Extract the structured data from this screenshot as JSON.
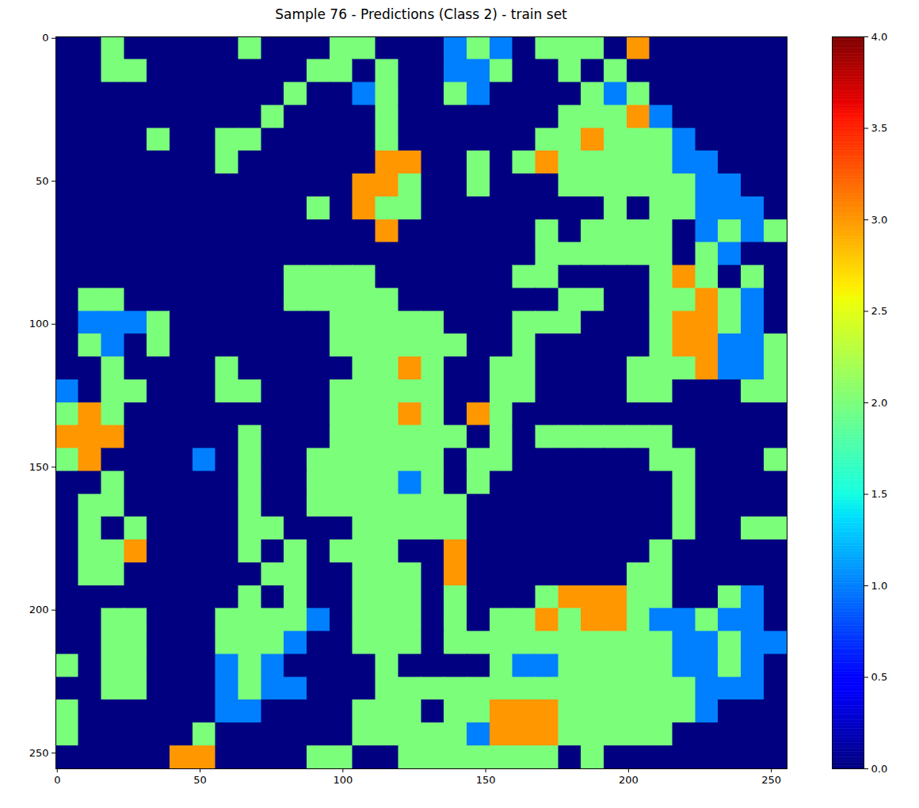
{
  "chart_data": {
    "type": "heatmap",
    "title": "Sample 76 - Predictions (Class 2) - train set",
    "xlim": [
      -0.5,
      255.5
    ],
    "ylim": [
      255.5,
      -0.5
    ],
    "xticks": [
      0,
      50,
      100,
      150,
      200,
      250
    ],
    "yticks": [
      0,
      50,
      100,
      150,
      200,
      250
    ],
    "grid": false,
    "cells": [
      [
        0,
        0,
        2,
        0,
        0,
        0,
        0,
        0,
        2,
        0,
        0,
        0,
        2,
        2,
        0,
        0,
        0,
        1,
        2,
        1,
        0,
        2,
        2,
        2,
        0,
        3,
        0,
        0,
        0,
        0,
        0,
        0
      ],
      [
        0,
        0,
        2,
        2,
        0,
        0,
        0,
        0,
        0,
        0,
        0,
        2,
        2,
        0,
        2,
        0,
        0,
        1,
        1,
        2,
        0,
        0,
        2,
        0,
        2,
        0,
        0,
        0,
        0,
        0,
        0,
        0
      ],
      [
        0,
        0,
        0,
        0,
        0,
        0,
        0,
        0,
        0,
        0,
        2,
        0,
        0,
        1,
        2,
        0,
        0,
        2,
        1,
        0,
        0,
        0,
        0,
        2,
        1,
        2,
        0,
        0,
        0,
        0,
        0,
        0
      ],
      [
        0,
        0,
        0,
        0,
        0,
        0,
        0,
        0,
        0,
        2,
        0,
        0,
        0,
        0,
        2,
        0,
        0,
        0,
        0,
        0,
        0,
        0,
        2,
        2,
        2,
        3,
        1,
        0,
        0,
        0,
        0,
        0
      ],
      [
        0,
        0,
        0,
        0,
        2,
        0,
        0,
        2,
        2,
        0,
        0,
        0,
        0,
        0,
        2,
        0,
        0,
        0,
        0,
        0,
        0,
        2,
        2,
        3,
        2,
        2,
        2,
        1,
        0,
        0,
        0,
        0
      ],
      [
        0,
        0,
        0,
        0,
        0,
        0,
        0,
        2,
        0,
        0,
        0,
        0,
        0,
        0,
        3,
        3,
        0,
        0,
        2,
        0,
        2,
        3,
        2,
        2,
        2,
        2,
        2,
        1,
        1,
        0,
        0,
        0
      ],
      [
        0,
        0,
        0,
        0,
        0,
        0,
        0,
        0,
        0,
        0,
        0,
        0,
        0,
        3,
        3,
        2,
        0,
        0,
        2,
        0,
        0,
        0,
        2,
        2,
        2,
        2,
        2,
        2,
        1,
        1,
        0,
        0
      ],
      [
        0,
        0,
        0,
        0,
        0,
        0,
        0,
        0,
        0,
        0,
        0,
        2,
        0,
        3,
        2,
        2,
        0,
        0,
        0,
        0,
        0,
        0,
        0,
        0,
        2,
        0,
        2,
        2,
        1,
        1,
        1,
        0
      ],
      [
        0,
        0,
        0,
        0,
        0,
        0,
        0,
        0,
        0,
        0,
        0,
        0,
        0,
        0,
        3,
        0,
        0,
        0,
        0,
        0,
        0,
        2,
        0,
        2,
        2,
        2,
        2,
        0,
        1,
        2,
        1,
        2
      ],
      [
        0,
        0,
        0,
        0,
        0,
        0,
        0,
        0,
        0,
        0,
        0,
        0,
        0,
        0,
        0,
        0,
        0,
        0,
        0,
        0,
        0,
        2,
        2,
        2,
        2,
        2,
        2,
        0,
        2,
        1,
        0,
        0
      ],
      [
        0,
        0,
        0,
        0,
        0,
        0,
        0,
        0,
        0,
        0,
        2,
        2,
        2,
        2,
        0,
        0,
        0,
        0,
        0,
        0,
        2,
        2,
        0,
        0,
        0,
        0,
        2,
        3,
        2,
        0,
        2,
        0
      ],
      [
        0,
        2,
        2,
        0,
        0,
        0,
        0,
        0,
        0,
        0,
        2,
        2,
        2,
        2,
        2,
        0,
        0,
        0,
        0,
        0,
        0,
        0,
        2,
        2,
        0,
        0,
        2,
        2,
        3,
        2,
        1,
        0
      ],
      [
        0,
        1,
        1,
        1,
        2,
        0,
        0,
        0,
        0,
        0,
        0,
        0,
        2,
        2,
        2,
        2,
        2,
        0,
        0,
        0,
        2,
        2,
        2,
        0,
        0,
        0,
        2,
        3,
        3,
        2,
        1,
        0
      ],
      [
        0,
        2,
        1,
        0,
        2,
        0,
        0,
        0,
        0,
        0,
        0,
        0,
        2,
        2,
        2,
        2,
        2,
        2,
        0,
        0,
        2,
        0,
        0,
        0,
        0,
        0,
        2,
        3,
        3,
        1,
        1,
        2
      ],
      [
        0,
        0,
        2,
        0,
        0,
        0,
        0,
        2,
        0,
        0,
        0,
        0,
        0,
        2,
        2,
        3,
        2,
        0,
        0,
        2,
        2,
        0,
        0,
        0,
        0,
        2,
        2,
        2,
        3,
        1,
        1,
        2
      ],
      [
        1,
        0,
        2,
        2,
        0,
        0,
        0,
        2,
        2,
        0,
        0,
        0,
        2,
        2,
        2,
        2,
        2,
        0,
        0,
        2,
        2,
        0,
        0,
        0,
        0,
        2,
        2,
        0,
        0,
        0,
        2,
        2
      ],
      [
        2,
        3,
        2,
        0,
        0,
        0,
        0,
        0,
        0,
        0,
        0,
        0,
        2,
        2,
        2,
        3,
        2,
        0,
        3,
        2,
        0,
        0,
        0,
        0,
        0,
        0,
        0,
        0,
        0,
        0,
        0,
        0
      ],
      [
        3,
        3,
        3,
        0,
        0,
        0,
        0,
        0,
        2,
        0,
        0,
        0,
        2,
        2,
        2,
        2,
        2,
        2,
        0,
        2,
        0,
        2,
        2,
        2,
        2,
        2,
        2,
        0,
        0,
        0,
        0,
        0
      ],
      [
        2,
        3,
        0,
        0,
        0,
        0,
        1,
        0,
        2,
        0,
        0,
        2,
        2,
        2,
        2,
        2,
        2,
        0,
        2,
        2,
        0,
        0,
        0,
        0,
        0,
        0,
        2,
        2,
        0,
        0,
        0,
        2
      ],
      [
        0,
        0,
        2,
        0,
        0,
        0,
        0,
        0,
        2,
        0,
        0,
        2,
        2,
        2,
        2,
        1,
        2,
        0,
        2,
        0,
        0,
        0,
        0,
        0,
        0,
        0,
        0,
        2,
        0,
        0,
        0,
        0
      ],
      [
        0,
        2,
        2,
        0,
        0,
        0,
        0,
        0,
        2,
        0,
        0,
        2,
        2,
        2,
        2,
        2,
        2,
        2,
        0,
        0,
        0,
        0,
        0,
        0,
        0,
        0,
        0,
        2,
        0,
        0,
        0,
        0
      ],
      [
        0,
        2,
        0,
        2,
        0,
        0,
        0,
        0,
        2,
        2,
        0,
        0,
        0,
        2,
        2,
        2,
        2,
        2,
        0,
        0,
        0,
        0,
        0,
        0,
        0,
        0,
        0,
        2,
        0,
        0,
        2,
        2
      ],
      [
        0,
        2,
        2,
        3,
        0,
        0,
        0,
        0,
        2,
        0,
        2,
        0,
        2,
        2,
        2,
        0,
        0,
        3,
        0,
        0,
        0,
        0,
        0,
        0,
        0,
        0,
        2,
        0,
        0,
        0,
        0,
        0
      ],
      [
        0,
        2,
        2,
        0,
        0,
        0,
        0,
        0,
        0,
        2,
        2,
        0,
        0,
        2,
        2,
        2,
        0,
        3,
        0,
        0,
        0,
        0,
        0,
        0,
        0,
        2,
        2,
        0,
        0,
        0,
        0,
        0
      ],
      [
        0,
        0,
        0,
        0,
        0,
        0,
        0,
        0,
        2,
        0,
        2,
        0,
        0,
        2,
        2,
        2,
        0,
        2,
        0,
        0,
        0,
        2,
        3,
        3,
        3,
        2,
        2,
        0,
        0,
        2,
        1,
        0
      ],
      [
        0,
        0,
        2,
        2,
        0,
        0,
        0,
        2,
        2,
        2,
        2,
        1,
        0,
        2,
        2,
        2,
        0,
        2,
        0,
        2,
        2,
        3,
        2,
        3,
        3,
        2,
        1,
        1,
        2,
        1,
        1,
        0
      ],
      [
        0,
        0,
        2,
        2,
        0,
        0,
        0,
        2,
        2,
        2,
        1,
        0,
        0,
        2,
        2,
        2,
        0,
        2,
        2,
        2,
        2,
        2,
        2,
        2,
        2,
        2,
        2,
        1,
        1,
        2,
        1,
        1
      ],
      [
        2,
        0,
        2,
        2,
        0,
        0,
        0,
        1,
        2,
        1,
        0,
        0,
        0,
        0,
        2,
        0,
        0,
        0,
        0,
        2,
        1,
        1,
        2,
        2,
        2,
        2,
        2,
        1,
        1,
        2,
        1,
        0
      ],
      [
        0,
        0,
        2,
        2,
        0,
        0,
        0,
        1,
        2,
        1,
        1,
        0,
        0,
        0,
        2,
        2,
        2,
        2,
        2,
        2,
        2,
        2,
        2,
        2,
        2,
        2,
        2,
        2,
        1,
        1,
        1,
        0
      ],
      [
        2,
        0,
        0,
        0,
        0,
        0,
        0,
        1,
        1,
        0,
        0,
        0,
        0,
        2,
        2,
        2,
        0,
        2,
        2,
        3,
        3,
        3,
        2,
        2,
        2,
        2,
        2,
        2,
        1,
        0,
        0,
        0
      ],
      [
        2,
        0,
        0,
        0,
        0,
        0,
        2,
        0,
        0,
        0,
        0,
        0,
        0,
        2,
        2,
        2,
        2,
        2,
        1,
        3,
        3,
        3,
        2,
        2,
        2,
        2,
        2,
        0,
        0,
        0,
        0,
        0
      ],
      [
        0,
        0,
        0,
        0,
        0,
        3,
        3,
        0,
        0,
        0,
        0,
        2,
        2,
        0,
        0,
        2,
        2,
        2,
        2,
        2,
        2,
        2,
        0,
        2,
        0,
        0,
        0,
        0,
        0,
        0,
        0,
        0
      ]
    ],
    "colorbar": {
      "range": [
        0,
        4
      ],
      "ticks": [
        {
          "value": 0,
          "label": "0.0"
        },
        {
          "value": 0.5,
          "label": "0.5"
        },
        {
          "value": 1,
          "label": "1.0"
        },
        {
          "value": 1.5,
          "label": "1.5"
        },
        {
          "value": 2,
          "label": "2.0"
        },
        {
          "value": 2.5,
          "label": "2.5"
        },
        {
          "value": 3,
          "label": "3.0"
        },
        {
          "value": 3.5,
          "label": "3.5"
        },
        {
          "value": 4,
          "label": "4.0"
        }
      ]
    }
  }
}
